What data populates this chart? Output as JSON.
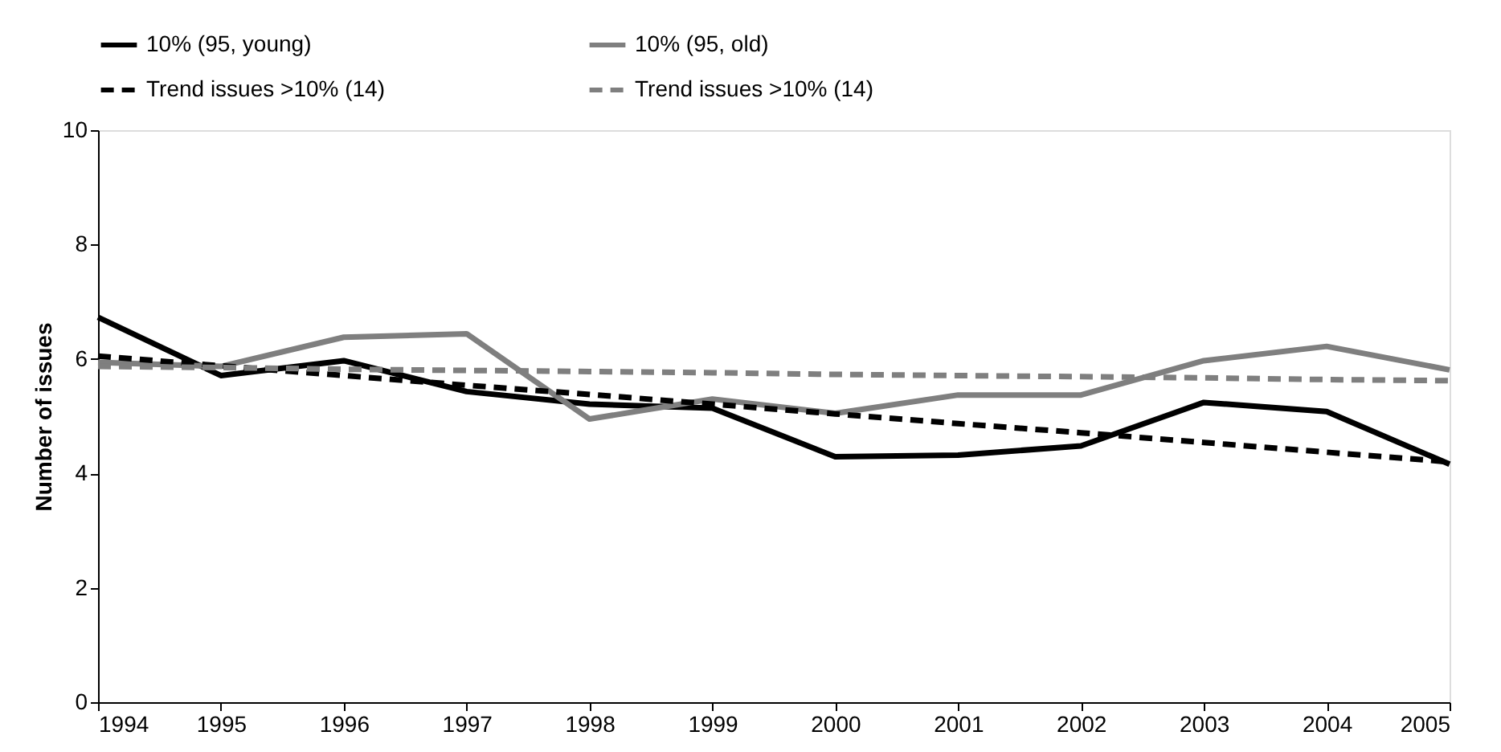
{
  "chart_data": {
    "type": "line",
    "ylabel": "Number of issues",
    "xlim": [
      1994,
      2005
    ],
    "xticks": [
      1994,
      1995,
      1996,
      1997,
      1998,
      1999,
      2000,
      2001,
      2002,
      2003,
      2004,
      2005
    ],
    "ylim": [
      0,
      10
    ],
    "yticks": [
      0,
      2,
      4,
      6,
      8,
      10
    ],
    "grid": false,
    "legend": "top",
    "marker": "none",
    "x": [
      1994,
      1995,
      1996,
      1997,
      1998,
      1999,
      2000,
      2001,
      2002,
      2003,
      2004,
      2005
    ],
    "series": [
      {
        "name": "10% (95, young)",
        "color": "#000000",
        "line_style": "solid",
        "values": [
          6.73,
          5.71,
          5.97,
          5.43,
          5.21,
          5.14,
          4.29,
          4.32,
          4.48,
          5.24,
          5.08,
          4.16
        ]
      },
      {
        "name": "10% (95, old)",
        "color": "#7f7f7f",
        "line_style": "solid",
        "values": [
          5.94,
          5.87,
          6.38,
          6.44,
          4.95,
          5.3,
          5.05,
          5.37,
          5.37,
          5.97,
          6.22,
          5.81
        ]
      },
      {
        "name": "Trend issues >10% (14)",
        "color": "#000000",
        "line_style": "dashed",
        "type": "line",
        "values": [
          6.05,
          5.88,
          5.71,
          5.54,
          5.38,
          5.21,
          5.04,
          4.87,
          4.71,
          4.54,
          4.37,
          4.2
        ]
      },
      {
        "name": "Trend issues >10% (14)",
        "color": "#7f7f7f",
        "line_style": "dashed",
        "type": "line",
        "values": [
          5.87,
          5.85,
          5.82,
          5.8,
          5.78,
          5.76,
          5.73,
          5.71,
          5.69,
          5.67,
          5.64,
          5.62
        ]
      }
    ]
  }
}
